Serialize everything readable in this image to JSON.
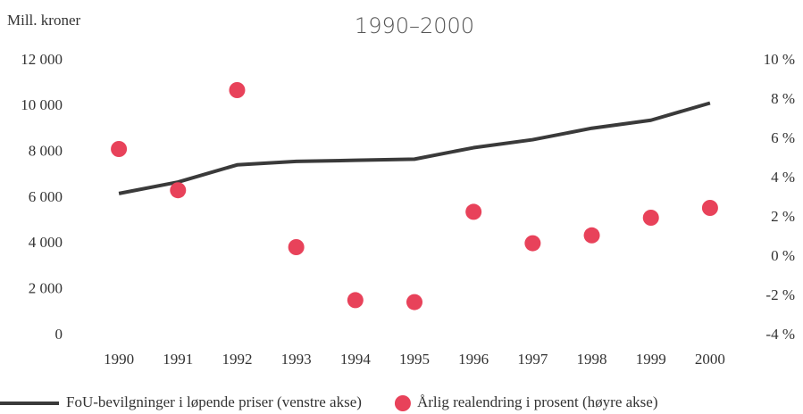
{
  "chart_data": {
    "type": "line",
    "title": "1990–2000",
    "y_label": "Mill. kroner",
    "categories": [
      "1990",
      "1991",
      "1992",
      "1993",
      "1994",
      "1995",
      "1996",
      "1997",
      "1998",
      "1999",
      "2000"
    ],
    "series": [
      {
        "name": "FoU-bevilgninger i løpende priser (venstre akse)",
        "type": "line",
        "color": "#3a3a3a",
        "values": [
          6200,
          6700,
          7450,
          7600,
          7650,
          7700,
          8200,
          8550,
          9050,
          9400,
          10150
        ]
      },
      {
        "name": "Årlig realendring i prosent (høyre akse)",
        "type": "scatter",
        "axis": "y2",
        "color": "#e8425a",
        "values": [
          5.5,
          3.4,
          8.5,
          0.5,
          -2.2,
          -2.3,
          2.3,
          0.7,
          1.1,
          2.0,
          2.5
        ]
      }
    ],
    "ylim": [
      0,
      12000
    ],
    "yticks": [
      0,
      {
        "value": 2000,
        "label": "2 000"
      },
      {
        "value": 4000,
        "label": "4 000"
      },
      {
        "value": 6000,
        "label": "6 000"
      },
      {
        "value": 8000,
        "label": "8 000"
      },
      {
        "value": 10000,
        "label": "10 000"
      },
      {
        "value": 12000,
        "label": "12 000"
      }
    ],
    "y2lim": [
      -4,
      10
    ],
    "y2ticks": [
      {
        "value": -4,
        "label": "-4 %"
      },
      {
        "value": -2,
        "label": "-2 %"
      },
      {
        "value": 0,
        "label": "0 %"
      },
      {
        "value": 2,
        "label": "2 %"
      },
      {
        "value": 4,
        "label": "4 %"
      },
      {
        "value": 6,
        "label": "6 %"
      },
      {
        "value": 8,
        "label": "8 %"
      },
      {
        "value": 10,
        "label": "10 %"
      }
    ],
    "grid": false,
    "legend": "bottom"
  }
}
